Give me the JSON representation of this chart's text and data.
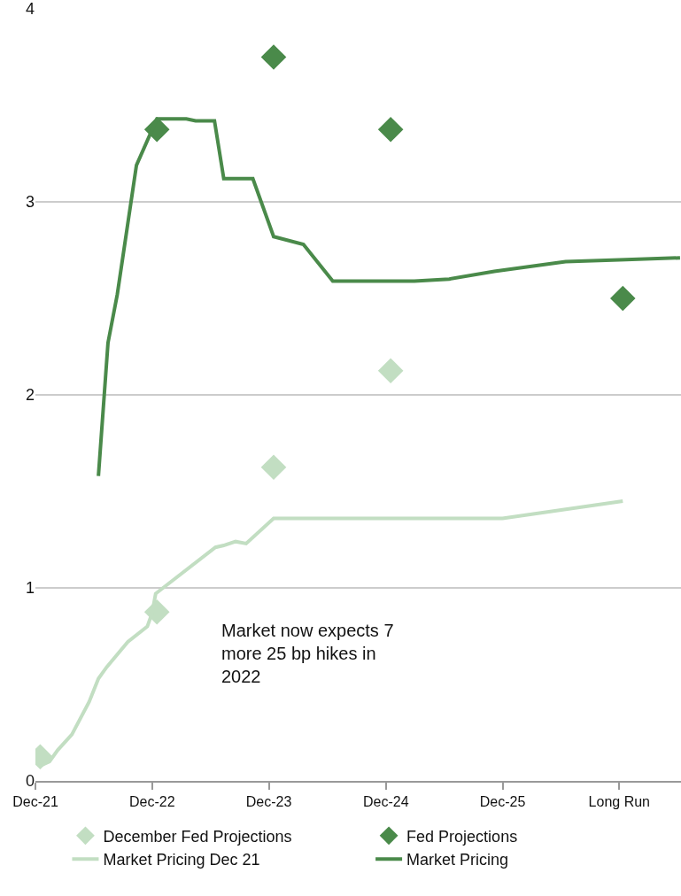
{
  "chart_data": {
    "type": "line",
    "xlim": [
      "2021-12-01",
      "2027-06-12"
    ],
    "xticks": [
      {
        "value": "2021-12",
        "label": "Dec-21"
      },
      {
        "value": "2022-12",
        "label": "Dec-22"
      },
      {
        "value": "2023-12",
        "label": "Dec-23"
      },
      {
        "value": "2024-12",
        "label": "Dec-24"
      },
      {
        "value": "2025-12",
        "label": "Dec-25"
      },
      {
        "value": "2026-12",
        "label": "Long Run"
      }
    ],
    "ylim": [
      0,
      4
    ],
    "yticks": [
      0,
      1,
      2,
      3,
      4
    ],
    "grid": "y",
    "legend": "bottom",
    "annotations": [
      "Market now expects 7 more 25 bp hikes in 2022"
    ],
    "series": [
      {
        "name": "December Fed Projections",
        "type": "scatter",
        "marker": "diamond",
        "color": "#c2dec2",
        "x": [
          "2021-12-16",
          "2022-12-16",
          "2023-12-16",
          "2024-12-16"
        ],
        "values": [
          0.125,
          0.875,
          1.625,
          2.125
        ]
      },
      {
        "name": "Fed Projections",
        "type": "scatter",
        "marker": "diamond",
        "color": "#4a8a4a",
        "x": [
          "2022-12-16",
          "2023-12-16",
          "2024-12-16",
          "2026-12-12"
        ],
        "values": [
          3.375,
          3.75,
          3.375,
          2.5
        ]
      },
      {
        "name": "Market Pricing Dec 21",
        "color": "#c2dec2",
        "x": [
          "2021-12-19",
          "2022-01-14",
          "2022-02-09",
          "2022-03-25",
          "2022-05-18",
          "2022-06-16",
          "2022-07-12",
          "2022-09-16",
          "2022-11-16",
          "2022-12-01",
          "2022-12-12",
          "2023-06-17",
          "2023-07-13",
          "2023-08-19",
          "2023-09-21",
          "2023-12-16",
          "2024-12-05",
          "2025-12-01",
          "2026-12-12"
        ],
        "values": [
          0.08,
          0.1,
          0.16,
          0.24,
          0.41,
          0.53,
          0.59,
          0.72,
          0.8,
          0.87,
          0.97,
          1.21,
          1.22,
          1.24,
          1.23,
          1.36,
          1.36,
          1.36,
          1.45
        ]
      },
      {
        "name": "Market Pricing",
        "color": "#4a8a4a",
        "x": [
          "2022-06-16",
          "2022-07-16",
          "2022-08-14",
          "2022-10-13",
          "2022-12-16",
          "2023-03-18",
          "2023-04-16",
          "2023-06-14",
          "2023-07-13",
          "2023-10-12",
          "2023-12-16",
          "2024-03-18",
          "2024-06-18",
          "2025-02-28",
          "2025-06-17",
          "2025-11-05",
          "2026-06-16",
          "2026-12-01",
          "2027-06-09"
        ],
        "values": [
          1.58,
          2.27,
          2.52,
          3.19,
          3.43,
          3.43,
          3.42,
          3.42,
          3.12,
          3.12,
          2.82,
          2.78,
          2.59,
          2.59,
          2.6,
          2.64,
          2.69,
          2.7,
          2.71
        ]
      }
    ]
  }
}
